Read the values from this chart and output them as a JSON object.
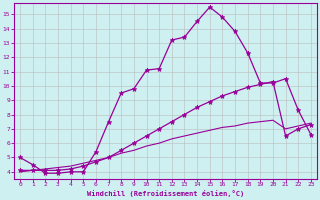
{
  "xlabel": "Windchill (Refroidissement éolien,°C)",
  "bg_color": "#cff0f0",
  "line_color": "#990099",
  "grid_color": "#bbbbbb",
  "xlim": [
    -0.5,
    23.5
  ],
  "ylim": [
    3.5,
    15.8
  ],
  "xticks": [
    0,
    1,
    2,
    3,
    4,
    5,
    6,
    7,
    8,
    9,
    10,
    11,
    12,
    13,
    14,
    15,
    16,
    17,
    18,
    19,
    20,
    21,
    22,
    23
  ],
  "yticks": [
    4,
    5,
    6,
    7,
    8,
    9,
    10,
    11,
    12,
    13,
    14,
    15
  ],
  "line1_x": [
    0,
    1,
    2,
    3,
    4,
    5,
    6,
    7,
    8,
    9,
    10,
    11,
    12,
    13,
    14,
    15,
    16,
    17,
    18,
    19,
    20,
    21,
    22,
    23
  ],
  "line1_y": [
    5.0,
    4.5,
    3.9,
    3.9,
    4.0,
    4.0,
    5.4,
    7.5,
    9.5,
    9.8,
    11.1,
    11.2,
    13.2,
    13.4,
    14.5,
    15.5,
    14.8,
    13.8,
    12.3,
    10.2,
    10.2,
    10.5,
    8.3,
    6.6
  ],
  "line2_x": [
    0,
    1,
    2,
    3,
    4,
    5,
    6,
    7,
    8,
    9,
    10,
    11,
    12,
    13,
    14,
    15,
    16,
    17,
    18,
    19,
    20,
    21,
    22,
    23
  ],
  "line2_y": [
    4.1,
    4.1,
    4.1,
    4.1,
    4.2,
    4.4,
    4.7,
    5.0,
    5.5,
    6.0,
    6.5,
    7.0,
    7.5,
    8.0,
    8.5,
    8.9,
    9.3,
    9.6,
    9.9,
    10.1,
    10.3,
    6.5,
    7.0,
    7.3
  ],
  "line3_x": [
    0,
    1,
    2,
    3,
    4,
    5,
    6,
    7,
    8,
    9,
    10,
    11,
    12,
    13,
    14,
    15,
    16,
    17,
    18,
    19,
    20,
    21,
    22,
    23
  ],
  "line3_y": [
    4.0,
    4.1,
    4.2,
    4.3,
    4.4,
    4.6,
    4.8,
    5.0,
    5.3,
    5.5,
    5.8,
    6.0,
    6.3,
    6.5,
    6.7,
    6.9,
    7.1,
    7.2,
    7.4,
    7.5,
    7.6,
    7.0,
    7.2,
    7.4
  ]
}
